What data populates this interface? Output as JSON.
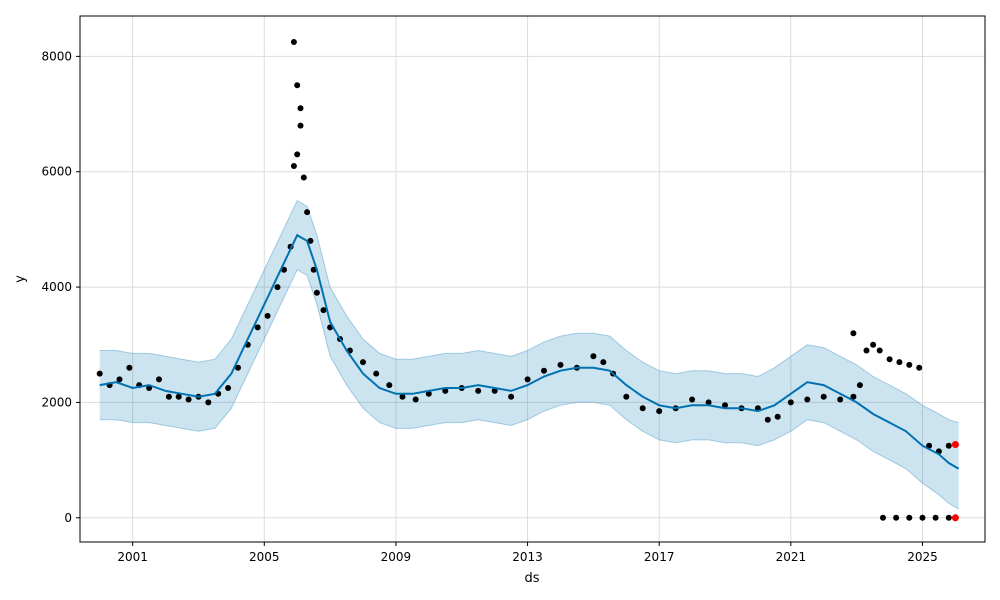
{
  "chart_data": {
    "type": "scatter",
    "xlabel": "ds",
    "ylabel": "y",
    "xlim": [
      1999.4,
      2026.9
    ],
    "ylim": [
      -420,
      8700
    ],
    "grid": true,
    "x_ticks": [
      {
        "value": 2001,
        "label": "2001"
      },
      {
        "value": 2005,
        "label": "2005"
      },
      {
        "value": 2009,
        "label": "2009"
      },
      {
        "value": 2013,
        "label": "2013"
      },
      {
        "value": 2017,
        "label": "2017"
      },
      {
        "value": 2021,
        "label": "2021"
      },
      {
        "value": 2025,
        "label": "2025"
      }
    ],
    "y_ticks": [
      {
        "value": 0,
        "label": "0"
      },
      {
        "value": 2000,
        "label": "2000"
      },
      {
        "value": 4000,
        "label": "4000"
      },
      {
        "value": 6000,
        "label": "6000"
      },
      {
        "value": 8000,
        "label": "8000"
      }
    ],
    "colors": {
      "forecast": "#0072b2",
      "interval": "#0072b2",
      "observed": "#000000",
      "highlight": "#ff0000",
      "grid": "#dddddd"
    },
    "series": [
      {
        "role": "forecast",
        "x": [
          2000.0,
          2000.5,
          2001.0,
          2001.5,
          2002.0,
          2002.5,
          2003.0,
          2003.5,
          2004.0,
          2004.5,
          2005.0,
          2005.5,
          2006.0,
          2006.3,
          2006.6,
          2007.0,
          2007.5,
          2008.0,
          2008.5,
          2009.0,
          2009.5,
          2010.0,
          2010.5,
          2011.0,
          2011.5,
          2012.0,
          2012.5,
          2013.0,
          2013.5,
          2014.0,
          2014.5,
          2015.0,
          2015.5,
          2016.0,
          2016.5,
          2017.0,
          2017.5,
          2018.0,
          2018.5,
          2019.0,
          2019.5,
          2020.0,
          2020.5,
          2021.0,
          2021.5,
          2022.0,
          2022.5,
          2023.0,
          2023.5,
          2024.0,
          2024.5,
          2025.0,
          2025.5,
          2025.8,
          2026.1
        ],
        "y": [
          2300,
          2350,
          2250,
          2300,
          2200,
          2150,
          2100,
          2150,
          2500,
          3100,
          3700,
          4300,
          4900,
          4800,
          4300,
          3400,
          2900,
          2500,
          2250,
          2150,
          2150,
          2200,
          2250,
          2250,
          2300,
          2250,
          2200,
          2300,
          2450,
          2550,
          2600,
          2600,
          2550,
          2300,
          2100,
          1950,
          1900,
          1950,
          1950,
          1900,
          1900,
          1850,
          1950,
          2150,
          2350,
          2300,
          2150,
          2000,
          1800,
          1650,
          1500,
          1250,
          1100,
          950,
          850
        ]
      },
      {
        "role": "interval-upper",
        "x": [
          2000.0,
          2000.5,
          2001.0,
          2001.5,
          2002.0,
          2002.5,
          2003.0,
          2003.5,
          2004.0,
          2004.5,
          2005.0,
          2005.5,
          2006.0,
          2006.3,
          2006.6,
          2007.0,
          2007.5,
          2008.0,
          2008.5,
          2009.0,
          2009.5,
          2010.0,
          2010.5,
          2011.0,
          2011.5,
          2012.0,
          2012.5,
          2013.0,
          2013.5,
          2014.0,
          2014.5,
          2015.0,
          2015.5,
          2016.0,
          2016.5,
          2017.0,
          2017.5,
          2018.0,
          2018.5,
          2019.0,
          2019.5,
          2020.0,
          2020.5,
          2021.0,
          2021.5,
          2022.0,
          2022.5,
          2023.0,
          2023.5,
          2024.0,
          2024.5,
          2025.0,
          2025.5,
          2025.8,
          2026.1
        ],
        "y": [
          2900,
          2900,
          2850,
          2850,
          2800,
          2750,
          2700,
          2750,
          3100,
          3700,
          4300,
          4900,
          5500,
          5400,
          4900,
          4000,
          3500,
          3100,
          2850,
          2750,
          2750,
          2800,
          2850,
          2850,
          2900,
          2850,
          2800,
          2900,
          3050,
          3150,
          3200,
          3200,
          3150,
          2900,
          2700,
          2550,
          2500,
          2550,
          2550,
          2500,
          2500,
          2450,
          2600,
          2800,
          3000,
          2950,
          2800,
          2650,
          2450,
          2300,
          2150,
          1950,
          1800,
          1700,
          1650
        ]
      },
      {
        "role": "interval-lower",
        "x": [
          2000.0,
          2000.5,
          2001.0,
          2001.5,
          2002.0,
          2002.5,
          2003.0,
          2003.5,
          2004.0,
          2004.5,
          2005.0,
          2005.5,
          2006.0,
          2006.3,
          2006.6,
          2007.0,
          2007.5,
          2008.0,
          2008.5,
          2009.0,
          2009.5,
          2010.0,
          2010.5,
          2011.0,
          2011.5,
          2012.0,
          2012.5,
          2013.0,
          2013.5,
          2014.0,
          2014.5,
          2015.0,
          2015.5,
          2016.0,
          2016.5,
          2017.0,
          2017.5,
          2018.0,
          2018.5,
          2019.0,
          2019.5,
          2020.0,
          2020.5,
          2021.0,
          2021.5,
          2022.0,
          2022.5,
          2023.0,
          2023.5,
          2024.0,
          2024.5,
          2025.0,
          2025.5,
          2025.8,
          2026.1
        ],
        "y": [
          1700,
          1700,
          1650,
          1650,
          1600,
          1550,
          1500,
          1550,
          1900,
          2500,
          3100,
          3700,
          4300,
          4200,
          3700,
          2800,
          2300,
          1900,
          1650,
          1550,
          1550,
          1600,
          1650,
          1650,
          1700,
          1650,
          1600,
          1700,
          1850,
          1950,
          2000,
          2000,
          1950,
          1700,
          1500,
          1350,
          1300,
          1350,
          1350,
          1300,
          1300,
          1250,
          1350,
          1500,
          1700,
          1650,
          1500,
          1350,
          1150,
          1000,
          850,
          600,
          400,
          250,
          150
        ]
      },
      {
        "role": "observed",
        "x": [
          2000.0,
          2000.3,
          2000.6,
          2000.9,
          2001.2,
          2001.5,
          2001.8,
          2002.1,
          2002.4,
          2002.7,
          2003.0,
          2003.3,
          2003.6,
          2003.9,
          2004.2,
          2004.5,
          2004.8,
          2005.1,
          2005.4,
          2005.6,
          2005.8,
          2005.9,
          2006.0,
          2006.1,
          2006.2,
          2006.3,
          2006.4,
          2006.5,
          2006.6,
          2006.8,
          2007.0,
          2007.3,
          2007.6,
          2008.0,
          2008.4,
          2008.8,
          2009.2,
          2009.6,
          2010.0,
          2010.5,
          2011.0,
          2011.5,
          2012.0,
          2012.5,
          2013.0,
          2013.5,
          2014.0,
          2014.5,
          2015.0,
          2015.3,
          2015.6,
          2016.0,
          2016.5,
          2017.0,
          2017.5,
          2018.0,
          2018.5,
          2019.0,
          2019.5,
          2020.0,
          2020.3,
          2020.6,
          2021.0,
          2021.5,
          2022.0,
          2022.5,
          2022.9,
          2023.1,
          2023.3,
          2023.5,
          2023.7,
          2024.0,
          2024.3,
          2024.6,
          2024.9,
          2025.2,
          2025.5,
          2025.8
        ],
        "y": [
          2500,
          2300,
          2400,
          2600,
          2300,
          2250,
          2400,
          2100,
          2100,
          2050,
          2100,
          2000,
          2150,
          2250,
          2600,
          3000,
          3300,
          3500,
          4000,
          4300,
          4700,
          6100,
          6300,
          6800,
          5900,
          5300,
          4800,
          4300,
          3900,
          3600,
          3300,
          3100,
          2900,
          2700,
          2500,
          2300,
          2100,
          2050,
          2150,
          2200,
          2250,
          2200,
          2200,
          2100,
          2400,
          2550,
          2650,
          2600,
          2800,
          2700,
          2500,
          2100,
          1900,
          1850,
          1900,
          2050,
          2000,
          1950,
          1900,
          1900,
          1700,
          1750,
          2000,
          2050,
          2100,
          2050,
          2100,
          2300,
          2900,
          3000,
          2900,
          2750,
          2700,
          2650,
          2600,
          1250,
          1150,
          1250
        ]
      },
      {
        "role": "observed-outliers",
        "x": [
          2005.9,
          2006.0,
          2006.1,
          2022.9,
          2023.8,
          2024.2,
          2024.6,
          2025.0,
          2025.4,
          2025.8
        ],
        "y": [
          8250,
          7500,
          7100,
          3200,
          0,
          0,
          0,
          0,
          0,
          0
        ]
      },
      {
        "role": "highlighted",
        "x": [
          2026.0,
          2026.0
        ],
        "y": [
          1270,
          0
        ]
      }
    ]
  }
}
